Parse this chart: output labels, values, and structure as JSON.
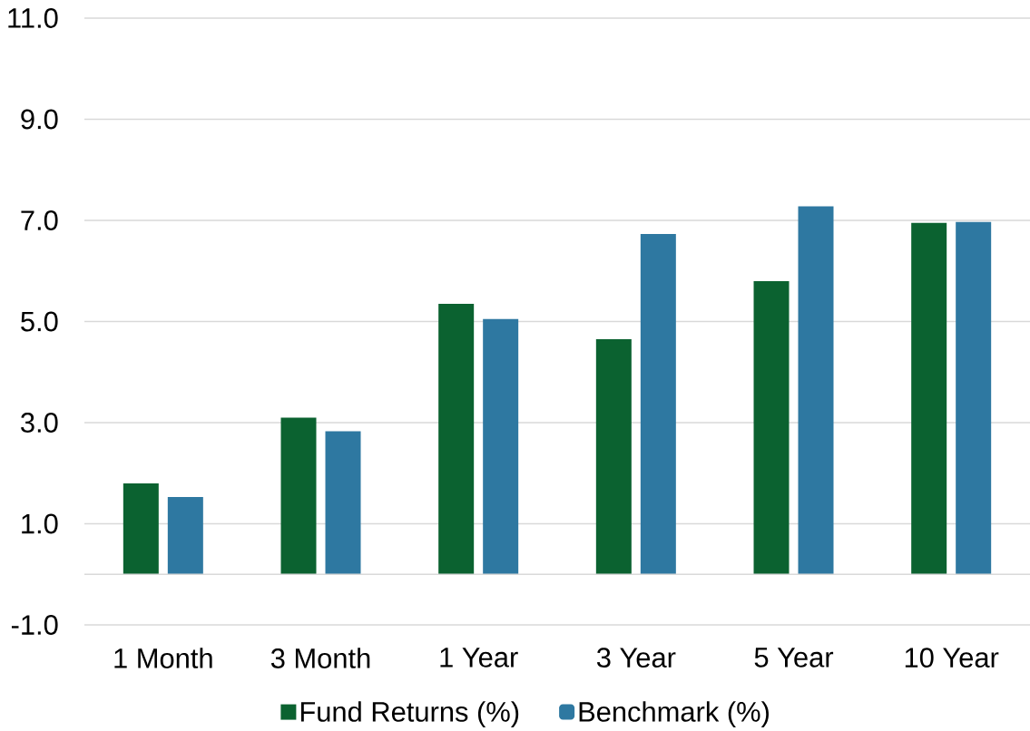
{
  "chart_data": {
    "type": "bar",
    "categories": [
      "1 Month",
      "3 Month",
      "1 Year",
      "3 Year",
      "5 Year",
      "10 Year"
    ],
    "series": [
      {
        "name": "Fund Returns (%)",
        "color": "#0b6230",
        "values": [
          1.8,
          3.1,
          5.35,
          4.65,
          5.8,
          6.95
        ]
      },
      {
        "name": "Benchmark (%)",
        "color": "#2e78a1",
        "values": [
          1.53,
          2.83,
          5.05,
          6.73,
          7.28,
          6.97
        ]
      }
    ],
    "ylim": [
      -1,
      11
    ],
    "yticks": [
      {
        "value": -1,
        "label": "-1.0"
      },
      {
        "value": 1,
        "label": "1.0"
      },
      {
        "value": 3,
        "label": "3.0"
      },
      {
        "value": 5,
        "label": "5.0"
      },
      {
        "value": 7,
        "label": "7.0"
      },
      {
        "value": 9,
        "label": "9.0"
      },
      {
        "value": 11,
        "label": "11.0"
      }
    ],
    "grid": "y",
    "legend": "bottom"
  }
}
